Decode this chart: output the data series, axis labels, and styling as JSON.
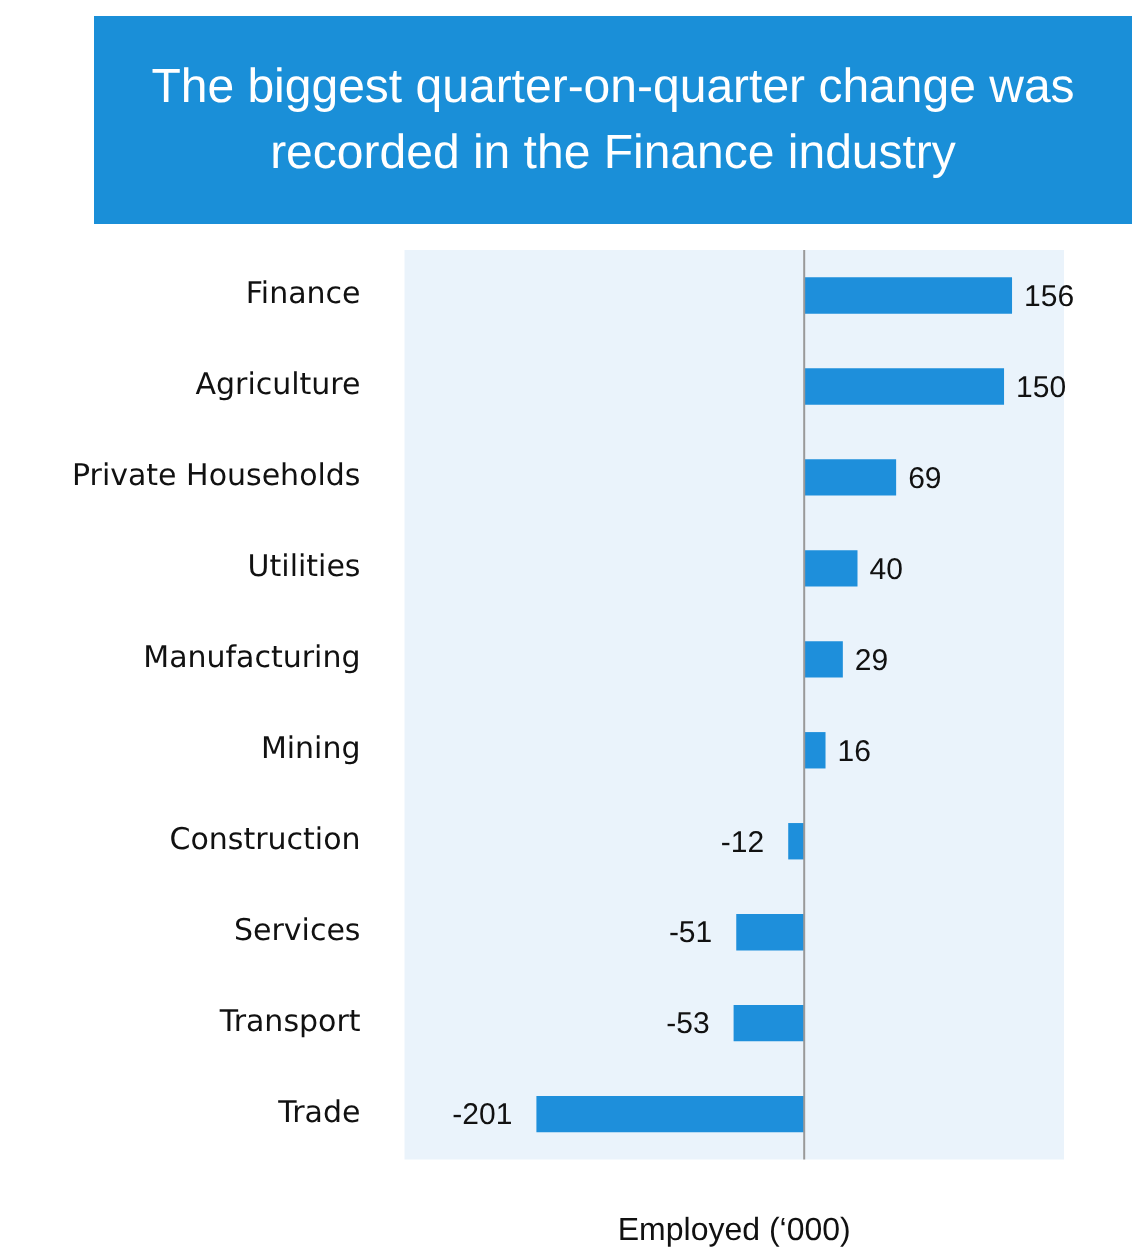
{
  "chart_data": {
    "type": "bar",
    "orientation": "horizontal",
    "title": "The biggest quarter-on-quarter change was recorded in the Finance industry",
    "xlabel": "Employed (‘000)",
    "categories": [
      "Finance",
      "Agriculture",
      "Private Households",
      "Utilities",
      "Manufacturing",
      "Mining",
      "Construction",
      "Services",
      "Transport",
      "Trade"
    ],
    "values": [
      156,
      150,
      69,
      40,
      29,
      16,
      -12,
      -51,
      -53,
      -201
    ],
    "color": "#1e8fdb",
    "xlim": [
      -300,
      195
    ],
    "tick_labels": "y",
    "grid": false,
    "legend": false,
    "data_labels": true
  }
}
